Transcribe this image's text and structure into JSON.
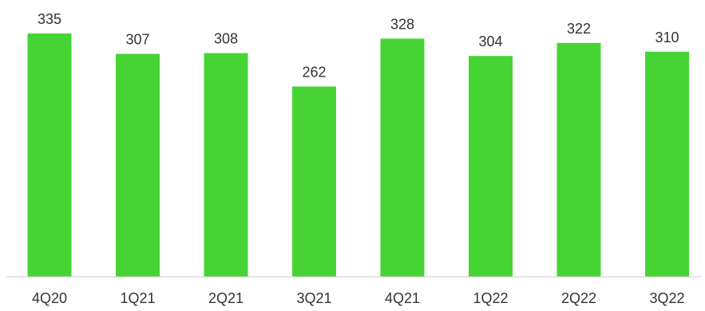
{
  "chart_data": {
    "type": "bar",
    "categories": [
      "4Q20",
      "1Q21",
      "2Q21",
      "3Q21",
      "4Q21",
      "1Q22",
      "2Q22",
      "3Q22"
    ],
    "values": [
      335,
      307,
      308,
      262,
      328,
      304,
      322,
      310
    ],
    "ylim": [
      0,
      335
    ],
    "grid": false,
    "legend": "none",
    "colors": {
      "bar": "#46d435",
      "axis": "#c8c8c8",
      "text": "#333333"
    }
  }
}
